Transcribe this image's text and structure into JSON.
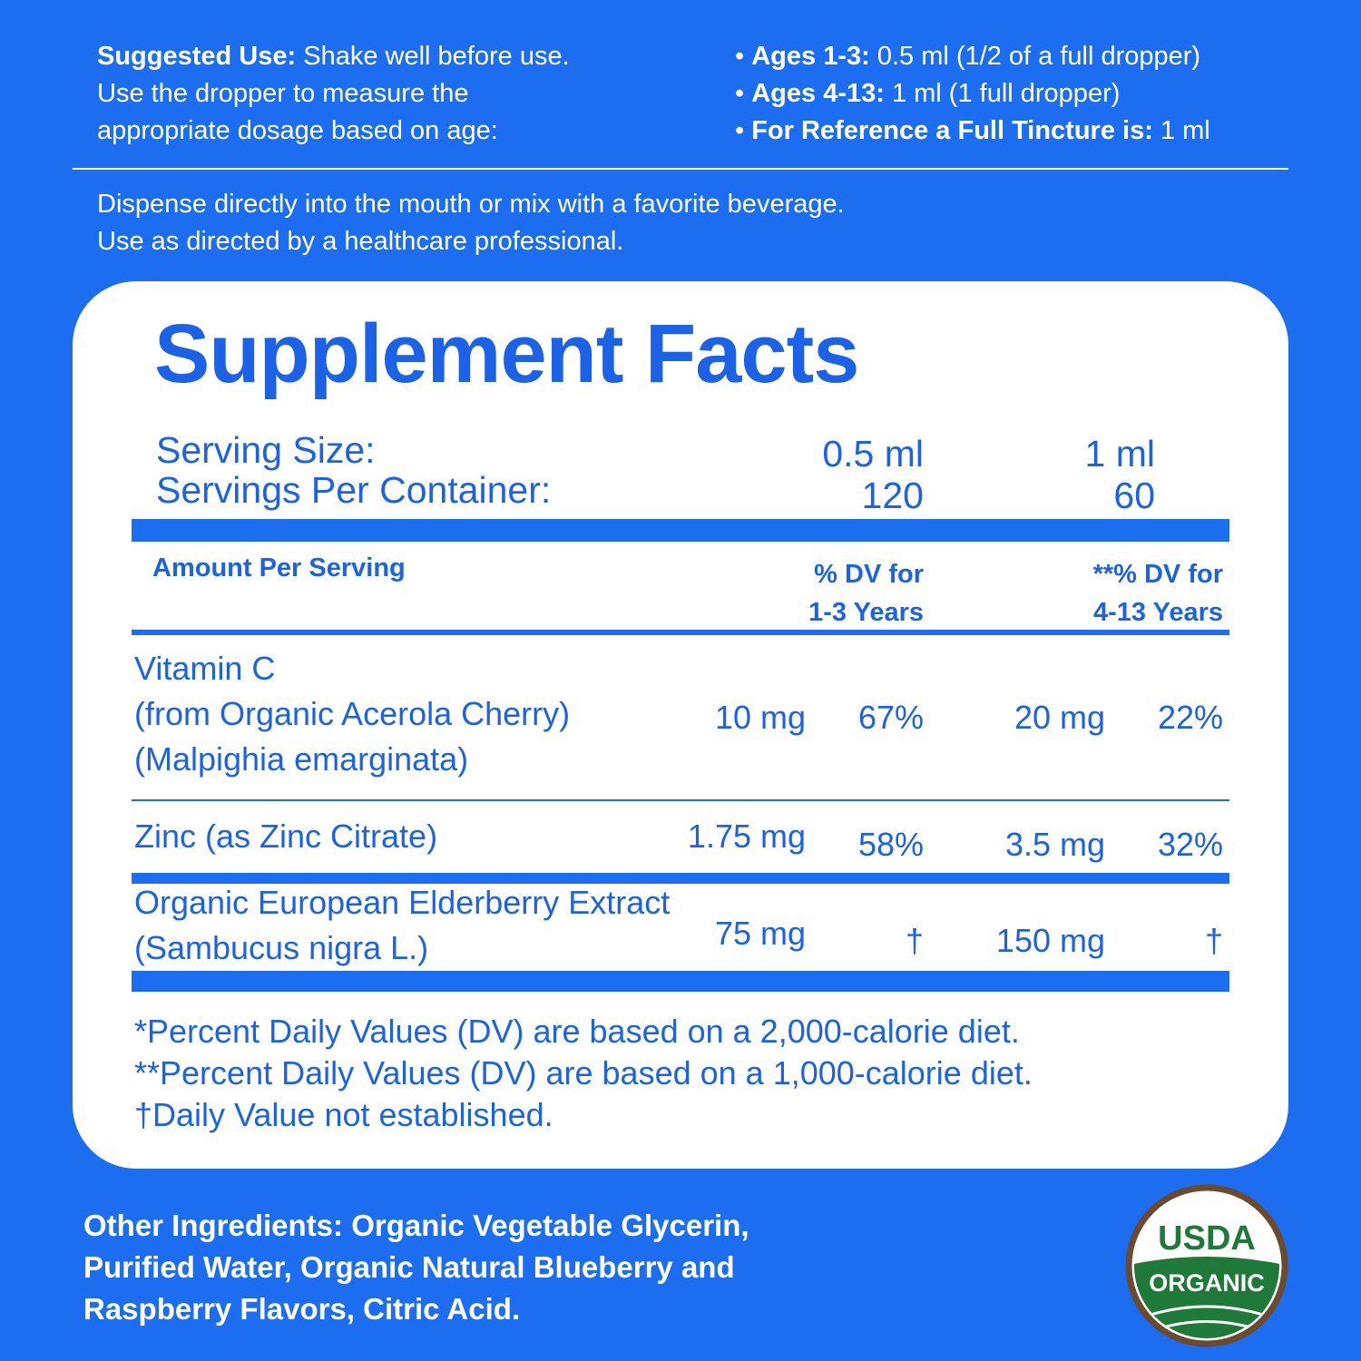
{
  "suggested_use": {
    "label": "Suggested Use:",
    "lines": [
      "Shake well before use.",
      "Use the dropper to measure the",
      "appropriate dosage based on age:"
    ]
  },
  "dosage": [
    {
      "label": "Ages 1-3:",
      "text": "0.5 ml (1/2 of a full dropper)"
    },
    {
      "label": "Ages 4-13:",
      "text": "1 ml (1 full dropper)"
    },
    {
      "label": "For Reference a Full Tincture is:",
      "text": "1 ml"
    }
  ],
  "directions": [
    "Dispense directly into the mouth or mix with a favorite beverage.",
    "Use as directed by a healthcare professional."
  ],
  "facts": {
    "title": "Supplement Facts",
    "serving_size": {
      "label": "Serving Size:",
      "values": [
        "0.5 ml",
        "1 ml"
      ]
    },
    "servings_per_container": {
      "label": "Servings Per Container:",
      "values": [
        120,
        60
      ]
    },
    "header": {
      "amount": "Amount Per Serving",
      "dv_1": [
        "% DV for",
        "1-3 Years"
      ],
      "dv_2": [
        "**% DV for",
        "4-13 Years"
      ]
    },
    "rows": [
      {
        "name": [
          "Vitamin C",
          "(from Organic Acerola Cherry)",
          "(Malpighia emarginata)"
        ],
        "amount_1": "10 mg",
        "dv_1": "67%",
        "amount_2": "20 mg",
        "dv_2": "22%"
      },
      {
        "name": [
          "Zinc (as Zinc Citrate)"
        ],
        "amount_1": "1.75 mg",
        "dv_1": "58%",
        "amount_2": "3.5 mg",
        "dv_2": "32%"
      },
      {
        "name": [
          "Organic European Elderberry Extract",
          "(Sambucus nigra L.)"
        ],
        "amount_1": "75 mg",
        "dv_1": "†",
        "amount_2": "150 mg",
        "dv_2": "†"
      }
    ],
    "footnotes": [
      "*Percent Daily Values (DV) are based on a 2,000-calorie diet.",
      "**Percent Daily Values (DV) are based on a 1,000-calorie diet.",
      "†Daily Value not established."
    ]
  },
  "other_ingredients": {
    "label": "Other Ingredients:",
    "lines": [
      " Organic Vegetable Glycerin,",
      "Purified Water, Organic Natural Blueberry and",
      "Raspberry Flavors, Citric Acid."
    ]
  },
  "badge": {
    "top": "USDA",
    "bottom": "ORGANIC"
  }
}
